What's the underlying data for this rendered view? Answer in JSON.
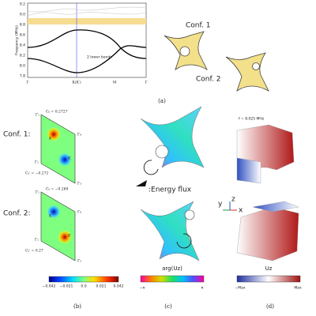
{
  "panel_a": {
    "y_label": "Frequency (MHz)",
    "yticks": [
      "9.2",
      "9.0",
      "8.8",
      "8.6",
      "8.4",
      "8.2",
      "8.0",
      "7.8"
    ],
    "xticks": [
      "Γ",
      "K(K′)",
      "M",
      "Γ"
    ],
    "annotation": "2 lower bands",
    "conf_labels": [
      "Conf. 1",
      "Conf. 2"
    ],
    "caption": "(a)"
  },
  "panel_b": {
    "rows": [
      {
        "label": "Conf. 1:",
        "corners": [
          "Γ₁",
          "Γ₄",
          "Γ₂",
          "Γ₃"
        ],
        "ck": "Cₖ = 0.2727",
        "ckp": "Cₖ′ = −0.272",
        "k": "K",
        "kp": "K′"
      },
      {
        "label": "Conf. 2:",
        "corners": [
          "Γ₁",
          "Γ₄",
          "Γ₂",
          "Γ₃"
        ],
        "ck": "Cₖ = −0.269",
        "ckp": "Cₖ′ = 0.27",
        "k": "K",
        "kp": "K′"
      }
    ],
    "colorbar_ticks": [
      "−0.042",
      "−0.021",
      "0.0",
      "0.021",
      "0.042"
    ],
    "caption": "(b)"
  },
  "panel_c": {
    "legend": ":Energy flux",
    "colorbar_label": "arg(Uz)",
    "colorbar_ticks": [
      "−π",
      "π"
    ],
    "caption": "(c)"
  },
  "panel_d": {
    "frequency": "f = 8.025 MHz",
    "axes": [
      "z",
      "y",
      "x"
    ],
    "colorbar_label": "Uz",
    "colorbar_ticks": [
      "−Max",
      "Max"
    ],
    "caption": "(d)"
  }
}
